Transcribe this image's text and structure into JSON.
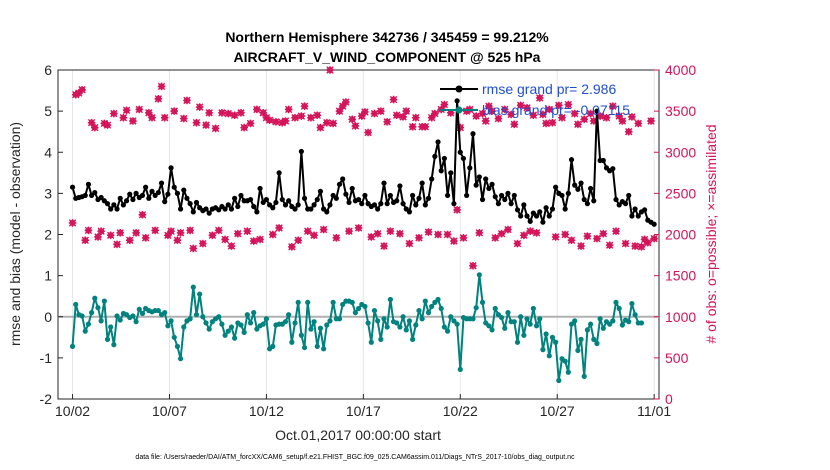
{
  "chart_data": {
    "type": "line",
    "title_line1": "Northern Hemisphere 342736 / 345459 = 99.212%",
    "title_line2": "AIRCRAFT_V_WIND_COMPONENT @ 525 hPa",
    "xlabel": "Oct.01,2017 00:00:00 start",
    "ylabel_left": "rmse and bias (model - observation)",
    "ylabel_right": "# of obs: o=possible; ×=assimilated",
    "footer": "data file: /Users/raeder/DAI/ATM_forcXX/CAM6_setup/f.e21.FHIST_BGC.f09_025.CAM6assim.011/Diags_NTrS_2017-10/obs_diag_output.nc",
    "x_ticks": [
      "10/02",
      "10/07",
      "10/12",
      "10/17",
      "10/22",
      "10/27",
      "11/01"
    ],
    "x_tick_days": [
      1,
      6,
      11,
      16,
      21,
      26,
      31
    ],
    "x_range": [
      0.25,
      31.25
    ],
    "ylim_left": [
      -2,
      6
    ],
    "y_ticks_left": [
      "-2",
      "-1",
      "0",
      "1",
      "2",
      "3",
      "4",
      "5",
      "6"
    ],
    "ylim_right": [
      0,
      4000
    ],
    "y_ticks_right": [
      "0",
      "500",
      "1000",
      "1500",
      "2000",
      "2500",
      "3000",
      "3500",
      "4000"
    ],
    "colors": {
      "rmse": "#000000",
      "bias": "#00827f",
      "obs": "#d4145a",
      "zero": "#b0b0b0",
      "legend_text": "#1f4fd1",
      "right_axis": "#d4145a"
    },
    "series": [
      {
        "name": "rmse grand pr= 2.986",
        "values": [
          3.15,
          2.88,
          2.9,
          2.92,
          2.95,
          3.22,
          2.95,
          3.02,
          2.85,
          2.9,
          2.82,
          2.75,
          2.62,
          2.72,
          2.62,
          2.88,
          2.72,
          2.82,
          2.98,
          2.85,
          3.0,
          2.9,
          2.95,
          3.15,
          2.88,
          3.05,
          2.95,
          3.02,
          3.25,
          2.8,
          2.98,
          3.62,
          3.15,
          3.0,
          2.62,
          3.08,
          2.88,
          2.75,
          2.55,
          2.78,
          2.65,
          2.58,
          2.62,
          2.52,
          2.62,
          2.65,
          2.6,
          2.68,
          2.62,
          2.72,
          2.62,
          2.88,
          2.68,
          2.95,
          2.82,
          2.82,
          2.85,
          2.68,
          2.55,
          3.12,
          2.78,
          2.85,
          2.72,
          2.65,
          2.78,
          3.5,
          2.85,
          2.72,
          2.82,
          2.68,
          2.62,
          2.72,
          4.02,
          2.88,
          2.62,
          2.62,
          2.72,
          2.85,
          3.05,
          2.62,
          2.55,
          2.72,
          2.95,
          2.88,
          3.22,
          3.35,
          2.98,
          2.78,
          3.12,
          2.82,
          2.85,
          2.75,
          2.95,
          2.75,
          2.68,
          2.72,
          2.62,
          2.75,
          3.25,
          2.75,
          2.95,
          2.78,
          2.82,
          3.18,
          2.75,
          2.62,
          2.55,
          2.95,
          2.72,
          2.88,
          3.25,
          2.72,
          2.88,
          3.35,
          3.9,
          4.25,
          3.55,
          3.85,
          2.95,
          3.5,
          2.75,
          5.25,
          4.0,
          3.85,
          2.95,
          3.62,
          4.45,
          3.2,
          3.4,
          2.85,
          3.35,
          3.12,
          3.22,
          2.92,
          2.75,
          2.95,
          2.85,
          3.0,
          2.75,
          2.95,
          2.6,
          2.45,
          2.72,
          2.45,
          2.32,
          2.52,
          2.45,
          2.55,
          2.3,
          2.65,
          2.45,
          2.62,
          3.15,
          3.0,
          2.95,
          2.62,
          3.0,
          3.82,
          3.2,
          3.1,
          3.25,
          2.85,
          2.75,
          3.12,
          2.82,
          5.0,
          3.8,
          3.8,
          3.62,
          3.55,
          3.6,
          2.85,
          2.72,
          2.8,
          2.75,
          2.95,
          2.45,
          2.62,
          2.45,
          2.55,
          2.6,
          2.35,
          2.3,
          2.25
        ]
      },
      {
        "name": "bias grand pr= -0.07115",
        "values": [
          -0.72,
          0.3,
          0.05,
          0.02,
          -0.35,
          -0.18,
          0.1,
          0.45,
          0.22,
          -0.1,
          0.38,
          -0.55,
          -0.25,
          -0.68,
          0.02,
          -0.08,
          0.08,
          0.05,
          -0.02,
          0.02,
          -0.12,
          0.18,
          0.08,
          0.2,
          0.15,
          0.12,
          0.15,
          0.15,
          0.05,
          0.1,
          -0.22,
          -0.1,
          -0.5,
          -0.72,
          -1.02,
          -0.25,
          -0.1,
          -0.05,
          0.72,
          0.05,
          0.55,
          0.0,
          -0.15,
          -0.3,
          -0.12,
          -0.05,
          0.0,
          -0.18,
          -0.45,
          -0.35,
          -0.25,
          -0.52,
          -0.15,
          -0.2,
          -0.38,
          0.05,
          -0.15,
          0.1,
          -0.3,
          -0.22,
          -0.18,
          -0.05,
          -0.78,
          -0.72,
          -0.2,
          -0.18,
          -0.18,
          -0.12,
          0.05,
          -0.62,
          -0.15,
          0.35,
          -0.45,
          -0.75,
          0.35,
          -0.3,
          -0.12,
          -0.72,
          -0.28,
          -0.78,
          -0.2,
          -0.1,
          0.35,
          -0.05,
          -0.05,
          0.3,
          0.38,
          0.38,
          0.35,
          0.1,
          0.2,
          0.3,
          0.25,
          -0.15,
          -0.62,
          0.15,
          -0.1,
          -0.55,
          -0.05,
          -0.25,
          0.42,
          -0.12,
          -0.15,
          -0.25,
          0.0,
          -0.32,
          -0.1,
          -0.55,
          -0.2,
          0.15,
          -0.05,
          0.38,
          0.1,
          0.25,
          0.35,
          0.42,
          0.2,
          -0.25,
          -0.35,
          0.0,
          -0.1,
          -0.18,
          -1.28,
          -0.02,
          -0.05,
          -0.05,
          -0.05,
          0.22,
          1.02,
          0.35,
          -0.15,
          -0.22,
          -0.32,
          0.2,
          0.05,
          -0.02,
          -0.28,
          0.1,
          -0.12,
          -0.12,
          -0.62,
          0.0,
          -0.45,
          -0.05,
          -0.18,
          0.2,
          -0.22,
          -0.05,
          -0.8,
          -0.42,
          -0.95,
          -0.5,
          -0.62,
          -1.55,
          -1.02,
          -1.08,
          -1.35,
          -0.18,
          -0.1,
          -0.82,
          -0.55,
          -1.45,
          -0.32,
          -0.18,
          -0.55,
          -0.65,
          -0.05,
          -0.28,
          -0.12,
          -0.18,
          -0.1,
          0.35,
          0.2,
          -0.2,
          -0.08,
          -0.12,
          0.32,
          0.05,
          -0.15,
          -0.15
        ]
      },
      {
        "name": "possible",
        "values": [
          2140,
          3700,
          3720,
          3760,
          1930,
          2050,
          3360,
          3300,
          1970,
          2040,
          3350,
          3330,
          1990,
          3470,
          1880,
          2020,
          3420,
          3510,
          1930,
          3380,
          2020,
          3520,
          2240,
          1960,
          3480,
          3420,
          2050,
          3650,
          3800,
          3420,
          1990,
          2040,
          3500,
          1930,
          2020,
          3410,
          3630,
          2050,
          1830,
          3360,
          3550,
          1890,
          3330,
          3480,
          1990,
          3290,
          2050,
          3480,
          1940,
          3470,
          1860,
          3450,
          2010,
          3480,
          3300,
          2040,
          3350,
          1920,
          3520,
          1940,
          3480,
          3420,
          3390,
          2000,
          3370,
          2080,
          3360,
          3380,
          3520,
          1850,
          3420,
          1930,
          3440,
          3560,
          2040,
          3420,
          1990,
          3450,
          3300,
          2060,
          3360,
          4000,
          3350,
          1960,
          3500,
          3560,
          3610,
          2040,
          3400,
          3320,
          2080,
          3440,
          3490,
          3240,
          1970,
          3470,
          2010,
          3500,
          1860,
          3370,
          2040,
          3640,
          3450,
          2010,
          3430,
          3500,
          1890,
          3310,
          3420,
          1960,
          3310,
          3310,
          2030,
          3420,
          3470,
          2000,
          3520,
          3580,
          2000,
          3480,
          1920,
          2300,
          3300,
          1960,
          3500,
          3520,
          1620,
          3440,
          2020,
          3470,
          3380,
          3560,
          3500,
          1960,
          3410,
          2010,
          3520,
          2060,
          3460,
          3340,
          1890,
          3570,
          1990,
          3540,
          2040,
          3450,
          2020,
          3660,
          3460,
          3350,
          3520,
          3360,
          1970,
          3570,
          3420,
          2000,
          3580,
          1930,
          3470,
          3340,
          1860,
          3400,
          1980,
          3470,
          3380,
          1950,
          3440,
          2010,
          3420,
          1870,
          3560,
          2040,
          3440,
          3380,
          1890,
          3250,
          3430,
          1860,
          3350,
          1850,
          1940,
          1900,
          3380,
          1950
        ]
      },
      {
        "name": "assimilated",
        "values": [
          2140,
          3700,
          3720,
          3760,
          1930,
          2050,
          3360,
          3300,
          1970,
          2040,
          3350,
          3330,
          1990,
          3470,
          1880,
          2020,
          3420,
          3510,
          1930,
          3380,
          2020,
          3520,
          2240,
          1960,
          3480,
          3420,
          2050,
          3650,
          3800,
          3420,
          1990,
          2040,
          3500,
          1930,
          2020,
          3410,
          3630,
          2050,
          1830,
          3360,
          3550,
          1890,
          3330,
          3480,
          1990,
          3290,
          2050,
          3480,
          1940,
          3470,
          1860,
          3450,
          2010,
          3480,
          3300,
          2040,
          3350,
          1920,
          3520,
          1940,
          3480,
          3420,
          3390,
          2000,
          3370,
          2080,
          3360,
          3380,
          3520,
          1850,
          3420,
          1930,
          3440,
          3560,
          2040,
          3420,
          1990,
          3450,
          3300,
          2060,
          3360,
          4000,
          3350,
          1960,
          3500,
          3560,
          3610,
          2040,
          3400,
          3320,
          2080,
          3440,
          3490,
          3240,
          1970,
          3470,
          2010,
          3500,
          1860,
          3370,
          2040,
          3640,
          3450,
          2010,
          3430,
          3500,
          1890,
          3310,
          3420,
          1960,
          3310,
          3310,
          2030,
          3420,
          3470,
          2000,
          3520,
          3580,
          2000,
          3480,
          1920,
          2300,
          3300,
          1960,
          3500,
          3520,
          1620,
          3440,
          2020,
          3470,
          3380,
          3560,
          3500,
          1960,
          3410,
          2010,
          3520,
          2060,
          3460,
          3340,
          1890,
          3570,
          1990,
          3540,
          2040,
          3450,
          2020,
          3660,
          3460,
          3350,
          3520,
          3360,
          1970,
          3570,
          3420,
          2000,
          3580,
          1930,
          3470,
          3340,
          1860,
          3400,
          1980,
          3470,
          3380,
          1950,
          3440,
          2010,
          3420,
          1870,
          3560,
          2040,
          3440,
          3380,
          1890,
          3250,
          3430,
          1860,
          3350,
          1850,
          1940,
          1900,
          3380,
          1950
        ]
      }
    ],
    "legend_position": "top-right"
  }
}
